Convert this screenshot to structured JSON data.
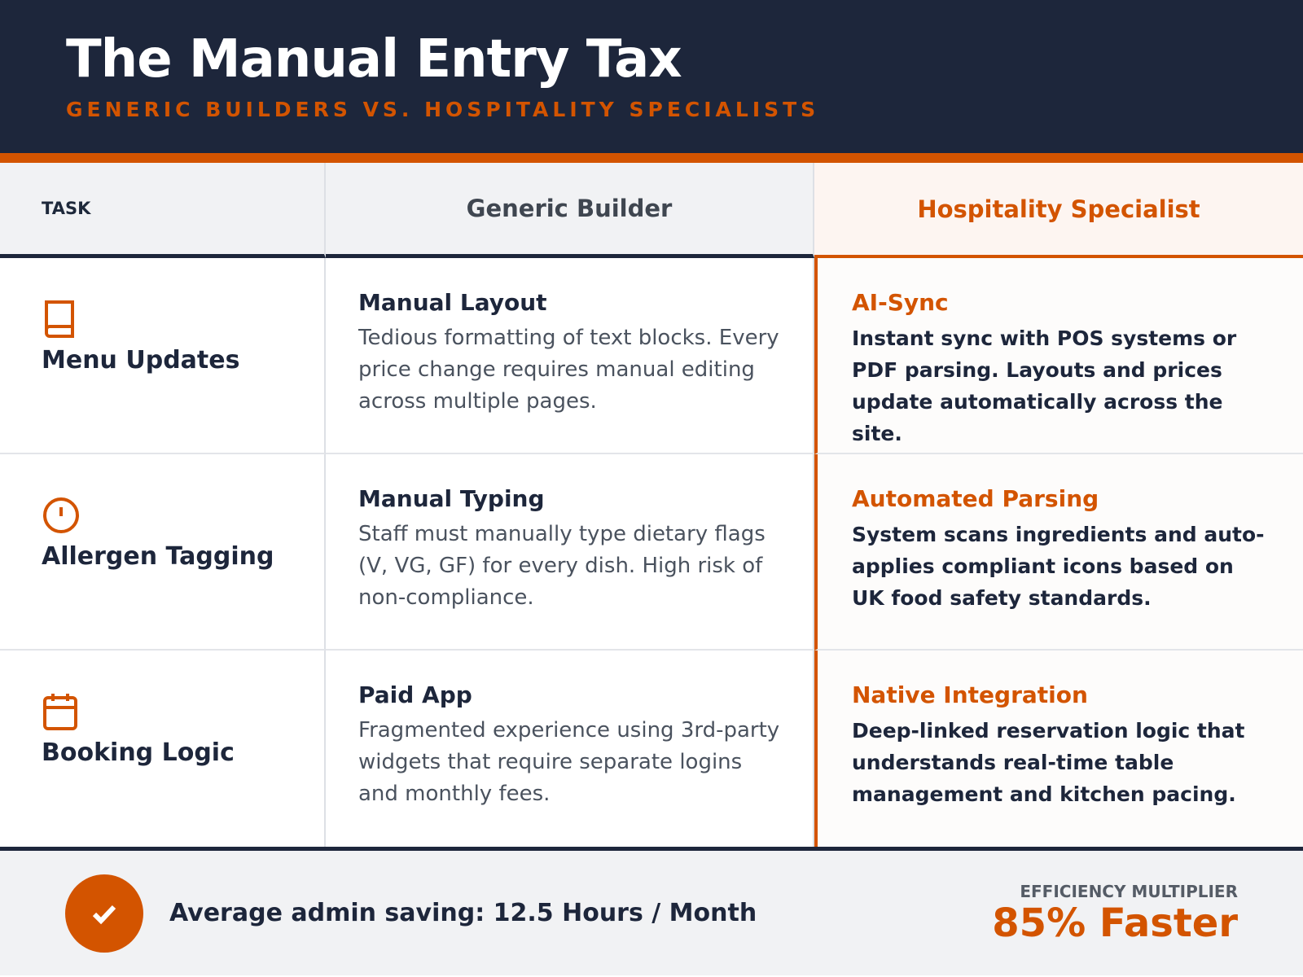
{
  "header": {
    "title": "The Manual Entry Tax",
    "subtitle": "GENERIC BUILDERS VS. HOSPITALITY SPECIALISTS"
  },
  "columns": {
    "task": "TASK",
    "generic": "Generic Builder",
    "specialist": "Hospitality Specialist"
  },
  "rows": [
    {
      "icon": "book-icon",
      "task": "Menu Updates",
      "generic_title": "Manual Layout",
      "generic_desc": "Tedious formatting of text blocks. Every price change requires manual editing across multiple pages.",
      "spec_title": "AI-Sync",
      "spec_desc": "Instant sync with POS systems or PDF parsing. Layouts and prices update automatically across the site."
    },
    {
      "icon": "alert-circle-icon",
      "task": "Allergen Tagging",
      "generic_title": "Manual Typing",
      "generic_desc": "Staff must manually type dietary flags (V, VG, GF) for every dish. High risk of non-compliance.",
      "spec_title": "Automated Parsing",
      "spec_desc": "System scans ingredients and auto-applies compliant icons based on UK food safety standards."
    },
    {
      "icon": "calendar-icon",
      "task": "Booking Logic",
      "generic_title": "Paid App",
      "generic_desc": "Fragmented experience using 3rd-party widgets that require separate logins and monthly fees.",
      "spec_title": "Native Integration",
      "spec_desc": "Deep-linked reservation logic that understands real-time table management and kitchen pacing."
    }
  ],
  "footer": {
    "saving": "Average admin saving: 12.5 Hours / Month",
    "efficiency_label": "EFFICIENCY MULTIPLIER",
    "efficiency_value": "85% Faster"
  },
  "colors": {
    "navy": "#1d263b",
    "accent": "#d35400"
  }
}
